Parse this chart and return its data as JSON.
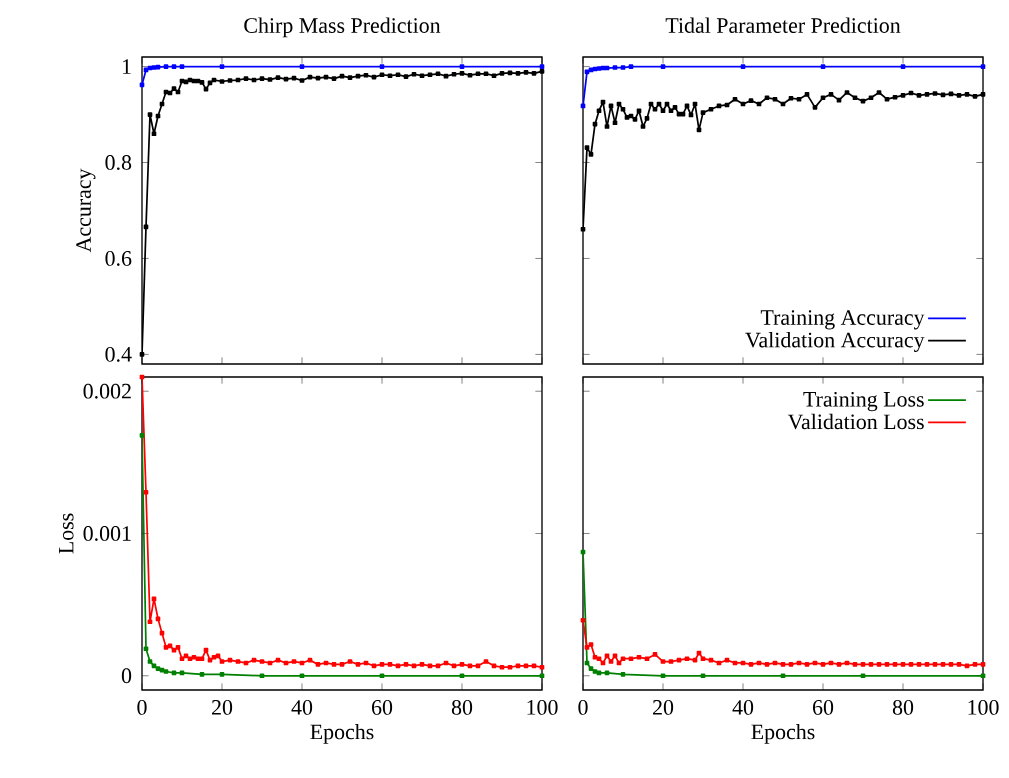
{
  "chart_data": [
    {
      "type": "line",
      "title": "Chirp Mass Prediction",
      "ylabel": "Accuracy",
      "xlim": [
        0,
        100
      ],
      "xticks": [
        0,
        20,
        40,
        60,
        80,
        100
      ],
      "ylim": [
        0.38,
        1.02
      ],
      "yticks": [
        0.4,
        0.6,
        0.8,
        1
      ],
      "tick_labels": "y",
      "marker": "square",
      "line_style": "solid",
      "series": [
        {
          "color": "#0000ff",
          "x": [
            0,
            1,
            2,
            3,
            4,
            6,
            8,
            10,
            20,
            40,
            60,
            80,
            100
          ],
          "values": [
            0.962,
            0.993,
            0.997,
            0.998,
            0.999,
            1,
            1,
            1,
            1,
            1,
            1,
            1,
            1
          ]
        },
        {
          "color": "#000000",
          "x": [
            0,
            1,
            2,
            3,
            4,
            5,
            6,
            7,
            8,
            9,
            10,
            11,
            12,
            13,
            14,
            15,
            16,
            17,
            18,
            20,
            22,
            24,
            26,
            28,
            30,
            32,
            34,
            36,
            38,
            40,
            42,
            44,
            46,
            48,
            50,
            52,
            54,
            56,
            58,
            60,
            62,
            64,
            66,
            68,
            70,
            72,
            74,
            76,
            78,
            80,
            82,
            84,
            86,
            88,
            90,
            92,
            94,
            96,
            98,
            100
          ],
          "values": [
            0.4,
            0.666,
            0.9,
            0.86,
            0.897,
            0.922,
            0.947,
            0.945,
            0.954,
            0.947,
            0.97,
            0.968,
            0.972,
            0.97,
            0.97,
            0.967,
            0.953,
            0.966,
            0.972,
            0.969,
            0.971,
            0.972,
            0.975,
            0.972,
            0.975,
            0.973,
            0.977,
            0.974,
            0.976,
            0.971,
            0.978,
            0.976,
            0.978,
            0.975,
            0.98,
            0.977,
            0.98,
            0.982,
            0.978,
            0.983,
            0.981,
            0.983,
            0.979,
            0.984,
            0.981,
            0.983,
            0.985,
            0.98,
            0.984,
            0.986,
            0.982,
            0.985,
            0.985,
            0.981,
            0.986,
            0.987,
            0.986,
            0.988,
            0.986,
            0.99
          ]
        }
      ]
    },
    {
      "type": "line",
      "title": "Tidal Parameter Prediction",
      "xlim": [
        0,
        100
      ],
      "xticks": [
        0,
        20,
        40,
        60,
        80,
        100
      ],
      "ylim": [
        0.38,
        1.02
      ],
      "yticks": [
        0.4,
        0.6,
        0.8,
        1
      ],
      "tick_labels": false,
      "marker": "square",
      "line_style": "solid",
      "legend": "bottom right",
      "series": [
        {
          "name": "Training Accuracy",
          "color": "#0000ff",
          "x": [
            0,
            1,
            2,
            3,
            4,
            5,
            6,
            8,
            10,
            12,
            20,
            40,
            60,
            80,
            100
          ],
          "values": [
            0.918,
            0.989,
            0.993,
            0.995,
            0.996,
            0.997,
            0.997,
            0.998,
            0.998,
            1,
            1,
            1,
            1,
            1,
            1
          ]
        },
        {
          "name": "Validation Accuracy",
          "color": "#000000",
          "x": [
            0,
            1,
            2,
            3,
            4,
            5,
            6,
            7,
            8,
            9,
            10,
            11,
            12,
            13,
            14,
            15,
            16,
            17,
            18,
            19,
            20,
            21,
            22,
            23,
            24,
            25,
            26,
            27,
            28,
            29,
            30,
            32,
            34,
            36,
            38,
            40,
            42,
            44,
            46,
            48,
            50,
            52,
            54,
            56,
            58,
            60,
            62,
            64,
            66,
            68,
            70,
            72,
            74,
            76,
            78,
            80,
            82,
            84,
            86,
            88,
            90,
            92,
            94,
            96,
            98,
            100
          ],
          "values": [
            0.661,
            0.831,
            0.817,
            0.88,
            0.908,
            0.926,
            0.875,
            0.918,
            0.883,
            0.922,
            0.911,
            0.894,
            0.897,
            0.89,
            0.908,
            0.875,
            0.892,
            0.922,
            0.911,
            0.922,
            0.908,
            0.922,
            0.908,
            0.915,
            0.901,
            0.901,
            0.918,
            0.899,
            0.922,
            0.868,
            0.904,
            0.911,
            0.918,
            0.92,
            0.932,
            0.922,
            0.929,
            0.922,
            0.935,
            0.932,
            0.922,
            0.934,
            0.932,
            0.942,
            0.915,
            0.935,
            0.942,
            0.93,
            0.946,
            0.935,
            0.928,
            0.935,
            0.946,
            0.932,
            0.936,
            0.94,
            0.945,
            0.94,
            0.942,
            0.944,
            0.941,
            0.943,
            0.94,
            0.942,
            0.938,
            0.942
          ]
        }
      ]
    },
    {
      "type": "line",
      "ylabel": "Loss",
      "xlabel": "Epochs",
      "xlim": [
        0,
        100
      ],
      "xticks": [
        0,
        20,
        40,
        60,
        80,
        100
      ],
      "ylim": [
        -0.0001,
        0.0021
      ],
      "yticks": [
        0,
        0.001,
        0.002
      ],
      "marker": "square",
      "line_style": "solid",
      "series": [
        {
          "color": "#008000",
          "x": [
            0,
            1,
            2,
            3,
            4,
            5,
            6,
            8,
            10,
            15,
            20,
            30,
            40,
            60,
            80,
            100
          ],
          "values": [
            0.00169,
            0.00019,
            0.0001,
            7e-05,
            5e-05,
            4e-05,
            3e-05,
            2e-05,
            2e-05,
            1e-05,
            1e-05,
            0,
            0,
            0,
            0,
            0
          ]
        },
        {
          "color": "#ff0000",
          "x": [
            0,
            1,
            2,
            3,
            4,
            5,
            6,
            7,
            8,
            9,
            10,
            11,
            12,
            13,
            14,
            15,
            16,
            17,
            18,
            19,
            20,
            22,
            24,
            26,
            28,
            30,
            32,
            34,
            36,
            38,
            40,
            42,
            44,
            46,
            48,
            50,
            52,
            54,
            56,
            58,
            60,
            62,
            64,
            66,
            68,
            70,
            72,
            74,
            76,
            78,
            80,
            82,
            84,
            86,
            88,
            90,
            92,
            94,
            96,
            98,
            100
          ],
          "values": [
            0.0021,
            0.00129,
            0.00038,
            0.00054,
            0.0004,
            0.0003,
            0.0002,
            0.00021,
            0.00018,
            0.0002,
            0.00012,
            0.00014,
            0.00012,
            0.00013,
            0.00012,
            0.00012,
            0.00018,
            0.00011,
            0.00013,
            0.00014,
            0.0001,
            0.00011,
            0.0001,
            9e-05,
            0.00011,
            0.0001,
            9e-05,
            0.00011,
            9e-05,
            0.0001,
            9e-05,
            0.00011,
            8e-05,
            9e-05,
            8e-05,
            8e-05,
            0.0001,
            8e-05,
            9e-05,
            7e-05,
            8e-05,
            8e-05,
            7e-05,
            8e-05,
            7e-05,
            8e-05,
            7e-05,
            7e-05,
            9e-05,
            7e-05,
            8e-05,
            7e-05,
            7e-05,
            0.0001,
            7e-05,
            6e-05,
            6e-05,
            7e-05,
            7e-05,
            7e-05,
            6e-05
          ]
        }
      ]
    },
    {
      "type": "line",
      "xlabel": "Epochs",
      "xlim": [
        0,
        100
      ],
      "xticks": [
        0,
        20,
        40,
        60,
        80,
        100
      ],
      "ylim": [
        -0.0001,
        0.0021
      ],
      "yticks": [
        0,
        0.001,
        0.002
      ],
      "tick_labels": "x",
      "marker": "square",
      "line_style": "solid",
      "legend": "top right",
      "series": [
        {
          "name": "Training Loss",
          "color": "#008000",
          "x": [
            0,
            1,
            2,
            3,
            4,
            6,
            10,
            20,
            30,
            50,
            70,
            100
          ],
          "values": [
            0.00087,
            9e-05,
            5e-05,
            3e-05,
            2e-05,
            2e-05,
            1e-05,
            0,
            0,
            0,
            0,
            0
          ]
        },
        {
          "name": "Validation Loss",
          "color": "#ff0000",
          "x": [
            0,
            1,
            2,
            3,
            4,
            5,
            6,
            7,
            8,
            9,
            10,
            12,
            14,
            16,
            18,
            20,
            22,
            24,
            26,
            28,
            29,
            30,
            32,
            34,
            36,
            38,
            40,
            42,
            44,
            46,
            48,
            50,
            52,
            54,
            56,
            58,
            60,
            62,
            64,
            66,
            68,
            70,
            72,
            74,
            76,
            78,
            80,
            82,
            84,
            86,
            88,
            90,
            92,
            94,
            96,
            98,
            100
          ],
          "values": [
            0.00039,
            0.0002,
            0.00022,
            0.00013,
            0.00012,
            9e-05,
            0.00014,
            0.0001,
            0.00014,
            9e-05,
            0.00012,
            0.00012,
            0.00013,
            0.00012,
            0.00015,
            0.0001,
            0.0001,
            0.00011,
            0.00012,
            0.00011,
            0.00016,
            0.00012,
            0.00011,
            9e-05,
            0.00011,
            9e-05,
            9e-05,
            8e-05,
            9e-05,
            8e-05,
            9e-05,
            8e-05,
            8e-05,
            9e-05,
            8e-05,
            9e-05,
            8e-05,
            9e-05,
            8e-05,
            9e-05,
            8e-05,
            8e-05,
            8e-05,
            8e-05,
            8e-05,
            8e-05,
            8e-05,
            8e-05,
            8e-05,
            8e-05,
            8e-05,
            8e-05,
            8e-05,
            8e-05,
            7e-05,
            8e-05,
            8e-05
          ]
        }
      ]
    }
  ]
}
